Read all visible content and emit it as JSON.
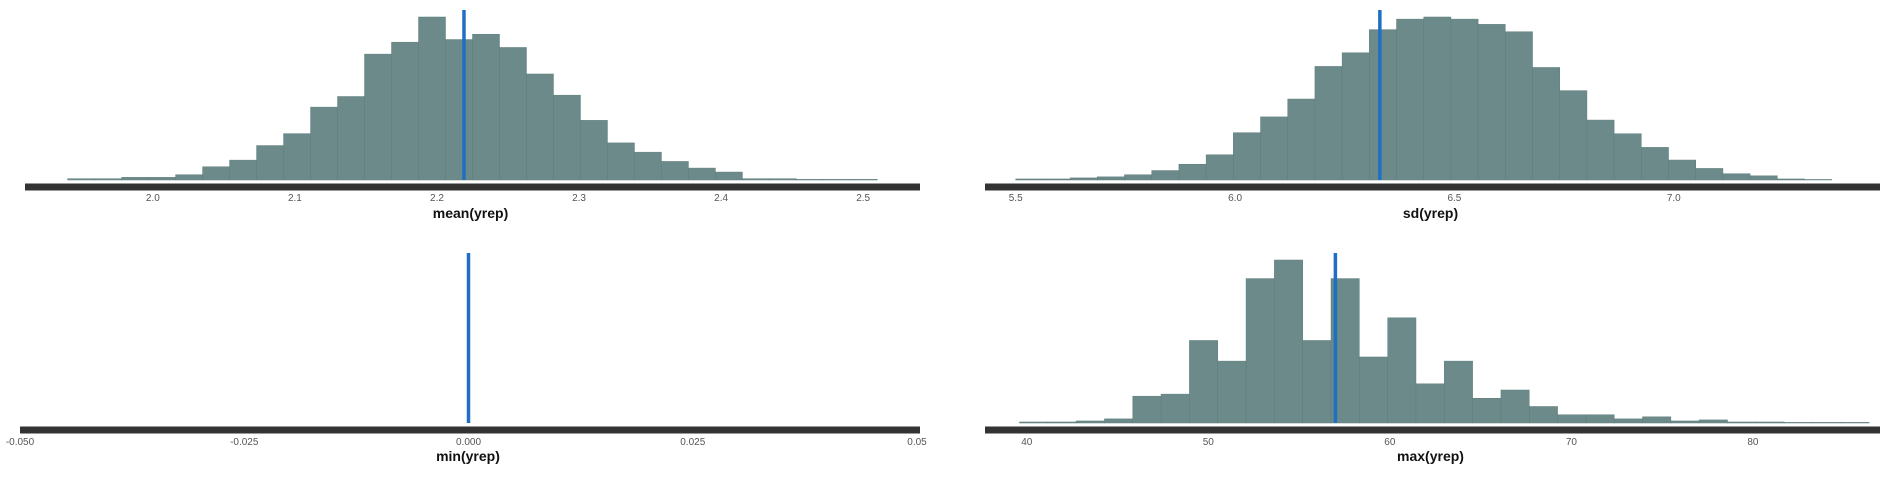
{
  "colors": {
    "bar": "#6b8a89",
    "bar_edge": "#5f7e7d",
    "observed_line": "#1f6fc4",
    "axis": "#333333"
  },
  "chart_data": [
    {
      "type": "bar",
      "title": "",
      "xlabel": "mean(yrep)",
      "ylabel": "",
      "xlim": [
        1.91,
        2.54
      ],
      "xticks": [
        2.0,
        2.1,
        2.2,
        2.3,
        2.4,
        2.5
      ],
      "xtick_labels": [
        "2.0",
        "2.1",
        "2.2",
        "2.3",
        "2.4",
        "2.5"
      ],
      "observed": 2.219,
      "bins": {
        "edges": [
          1.94,
          1.959,
          1.978,
          1.997,
          2.016,
          2.035,
          2.054,
          2.073,
          2.092,
          2.111,
          2.13,
          2.149,
          2.168,
          2.187,
          2.206,
          2.225,
          2.244,
          2.263,
          2.282,
          2.301,
          2.32,
          2.339,
          2.358,
          2.377,
          2.396,
          2.415,
          2.434,
          2.453,
          2.472,
          2.491,
          2.51
        ],
        "counts": [
          1,
          1,
          2,
          2,
          4,
          10,
          15,
          26,
          35,
          55,
          63,
          95,
          104,
          123,
          106,
          110,
          100,
          80,
          64,
          45,
          28,
          21,
          14,
          9,
          6,
          1,
          1,
          0.5,
          0.5,
          0.5
        ]
      },
      "grid": false
    },
    {
      "type": "bar",
      "title": "",
      "xlabel": "sd(yrep)",
      "ylabel": "",
      "xlim": [
        5.43,
        7.47
      ],
      "xticks": [
        5.5,
        6.0,
        6.5,
        7.0
      ],
      "xtick_labels": [
        "5.5",
        "6.0",
        "6.5",
        "7.0"
      ],
      "observed": 6.33,
      "bins": {
        "edges": [
          5.5,
          5.562,
          5.624,
          5.686,
          5.748,
          5.81,
          5.872,
          5.934,
          5.996,
          6.058,
          6.12,
          6.182,
          6.244,
          6.306,
          6.368,
          6.43,
          6.492,
          6.554,
          6.616,
          6.678,
          6.74,
          6.802,
          6.864,
          6.926,
          6.988,
          7.05,
          7.112,
          7.174,
          7.236,
          7.298,
          7.36
        ],
        "counts": [
          1,
          1,
          2,
          3,
          5,
          9,
          15,
          24,
          45,
          60,
          77,
          108,
          121,
          143,
          153,
          155,
          153,
          148,
          141,
          107,
          85,
          57,
          44,
          31,
          19,
          11,
          6,
          4,
          1,
          0.5
        ]
      },
      "grid": false
    },
    {
      "type": "bar",
      "title": "",
      "xlabel": "min(yrep)",
      "ylabel": "",
      "xlim": [
        -0.05,
        0.05
      ],
      "xticks": [
        -0.05,
        -0.025,
        0.0,
        0.025,
        0.05
      ],
      "xtick_labels": [
        "-0.050",
        "-0.025",
        "0.000",
        "0.025",
        "0.05"
      ],
      "observed": 0.0,
      "bins": {
        "edges": [],
        "counts": []
      },
      "grid": false
    },
    {
      "type": "bar",
      "title": "",
      "xlabel": "max(yrep)",
      "ylabel": "",
      "xlim": [
        37.7,
        87.0
      ],
      "xticks": [
        40,
        50,
        60,
        70,
        80
      ],
      "xtick_labels": [
        "40",
        "50",
        "60",
        "70",
        "80"
      ],
      "observed": 57,
      "bins": {
        "edges": [
          39.6,
          41.16,
          42.72,
          44.28,
          45.84,
          47.4,
          48.96,
          50.52,
          52.08,
          53.64,
          55.2,
          56.76,
          58.32,
          59.88,
          61.44,
          63.0,
          64.56,
          66.12,
          67.68,
          69.24,
          70.8,
          72.36,
          73.92,
          75.48,
          77.04,
          78.6,
          80.16,
          81.72,
          83.28,
          84.84,
          86.4
        ],
        "counts": [
          0.5,
          0.5,
          1,
          2,
          13,
          14,
          40,
          30,
          70,
          79,
          40,
          70,
          32,
          51,
          19,
          30,
          12,
          16,
          8,
          4,
          4,
          2,
          3,
          1,
          1.5,
          0.5,
          0.5,
          0.3,
          0.3,
          0.3
        ]
      },
      "grid": false
    }
  ]
}
